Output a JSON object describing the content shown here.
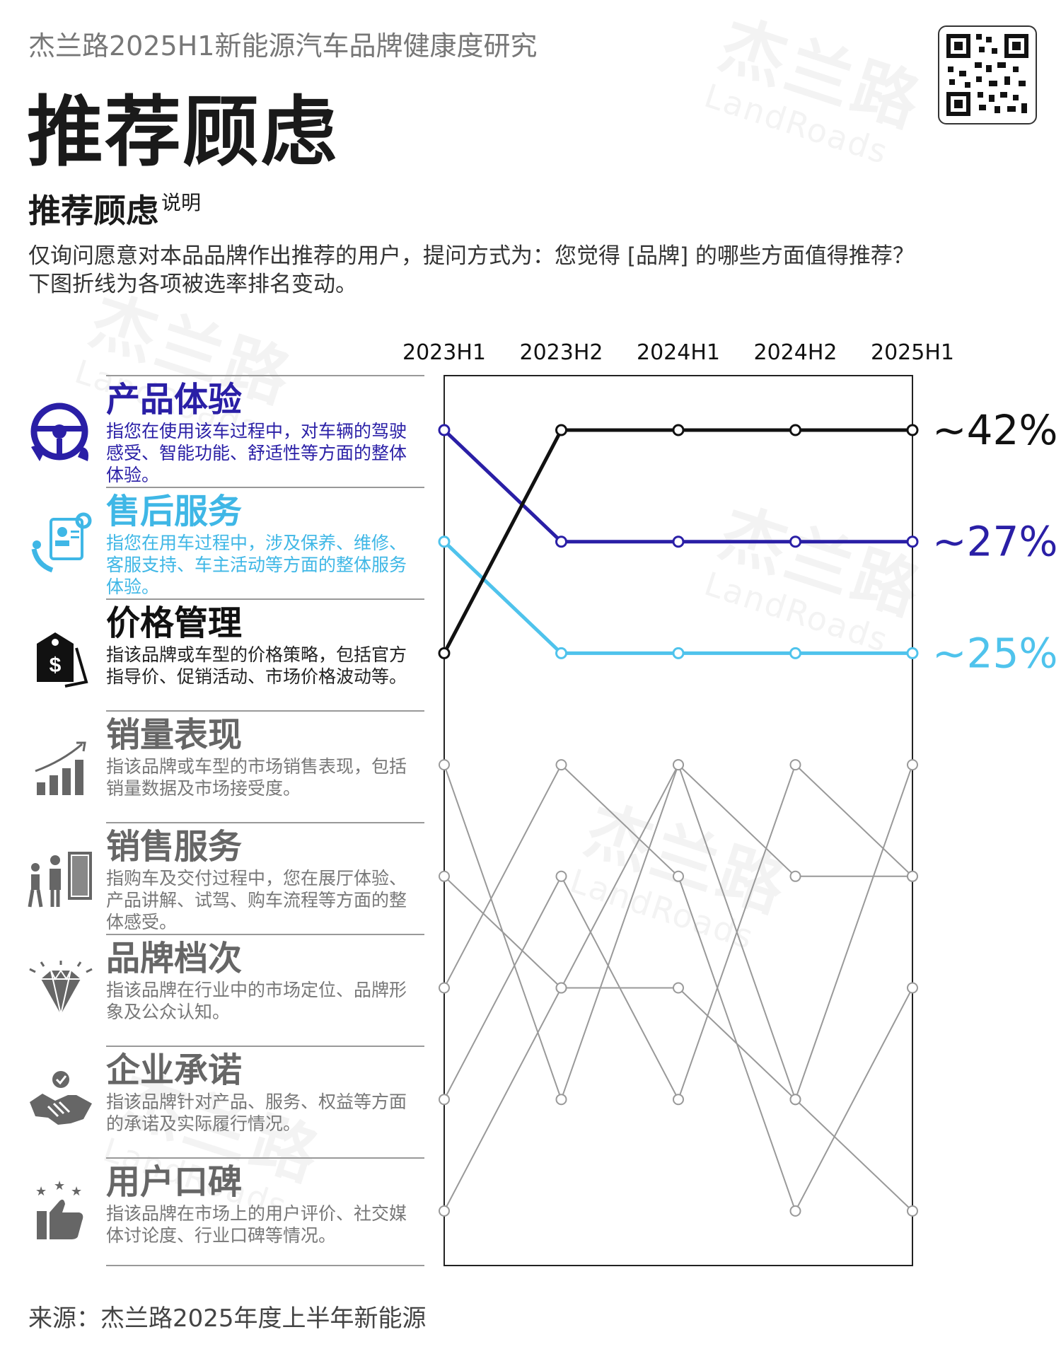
{
  "header": {
    "kicker": "杰兰路2025H1新能源汽车品牌健康度研究",
    "title": "推荐顾虑",
    "subtitle": "推荐顾虑",
    "subtitle_note": "说明",
    "desc_line1": "仅询问愿意对本品品牌作出推荐的用户，提问方式为：您觉得 [品牌] 的哪些方面值得推荐？",
    "desc_line2": "下图折线为各项被选率排名变动。"
  },
  "watermark": {
    "cn": "杰兰路",
    "en": "LandRoads"
  },
  "categories": [
    {
      "name": "产品体验",
      "desc": "指您在使用该车过程中，对车辆的驾驶感受、智能功能、舒适性等方面的整体体验。",
      "color": "#2a1fa6",
      "icon": "steering-wheel-icon"
    },
    {
      "name": "售后服务",
      "desc": "指您在用车过程中，涉及保养、维修、客服支持、车主活动等方面的整体服务体验。",
      "color": "#4fc3ec",
      "icon": "service-icon"
    },
    {
      "name": "价格管理",
      "desc": "指该品牌或车型的价格策略，包括官方指导价、促销活动、市场价格波动等。",
      "color": "#111111",
      "icon": "price-tag-icon"
    },
    {
      "name": "销量表现",
      "desc": "指该品牌或车型的市场销售表现，包括销量数据及市场接受度。",
      "color": "#666666",
      "icon": "bar-chart-icon"
    },
    {
      "name": "销售服务",
      "desc": "指购车及交付过程中，您在展厅体验、产品讲解、试驾、购车流程等方面的整体感受。",
      "color": "#666666",
      "icon": "showroom-icon"
    },
    {
      "name": "品牌档次",
      "desc": "指该品牌在行业中的市场定位、品牌形象及公众认知。",
      "color": "#666666",
      "icon": "diamond-icon"
    },
    {
      "name": "企业承诺",
      "desc": "指该品牌针对产品、服务、权益等方面的承诺及实际履行情况。",
      "color": "#666666",
      "icon": "handshake-icon"
    },
    {
      "name": "用户口碑",
      "desc": "指该品牌在市场上的用户评价、社交媒体讨论度、行业口碑等情况。",
      "color": "#666666",
      "icon": "thumbs-up-icon"
    }
  ],
  "chart_data": {
    "type": "line",
    "x": [
      "2023H1",
      "2023H2",
      "2024H1",
      "2024H2",
      "2025H1"
    ],
    "y_meaning": "rank",
    "ylim": [
      1,
      8
    ],
    "series": [
      {
        "values": [
          1,
          2,
          2,
          2,
          2
        ],
        "color": "#2a1fa6",
        "highlight": true,
        "end_label": "~27%"
      },
      {
        "values": [
          2,
          3,
          3,
          3,
          3
        ],
        "color": "#4fc3ec",
        "highlight": true,
        "end_label": "~25%"
      },
      {
        "values": [
          3,
          1,
          1,
          1,
          1
        ],
        "color": "#111111",
        "highlight": true,
        "end_label": "~42%"
      },
      {
        "values": [
          4,
          7,
          4,
          7,
          4
        ],
        "color": "#999999",
        "highlight": false
      },
      {
        "values": [
          5,
          6,
          4,
          5,
          5
        ],
        "color": "#999999",
        "highlight": false
      },
      {
        "values": [
          6,
          4,
          5,
          8,
          6
        ],
        "color": "#999999",
        "highlight": false
      },
      {
        "values": [
          7,
          5,
          7,
          4,
          5
        ],
        "color": "#999999",
        "highlight": false
      },
      {
        "values": [
          8,
          6,
          6,
          7,
          8
        ],
        "color": "#999999",
        "highlight": false
      }
    ]
  },
  "source": "来源：杰兰路2025年度上半年新能源"
}
